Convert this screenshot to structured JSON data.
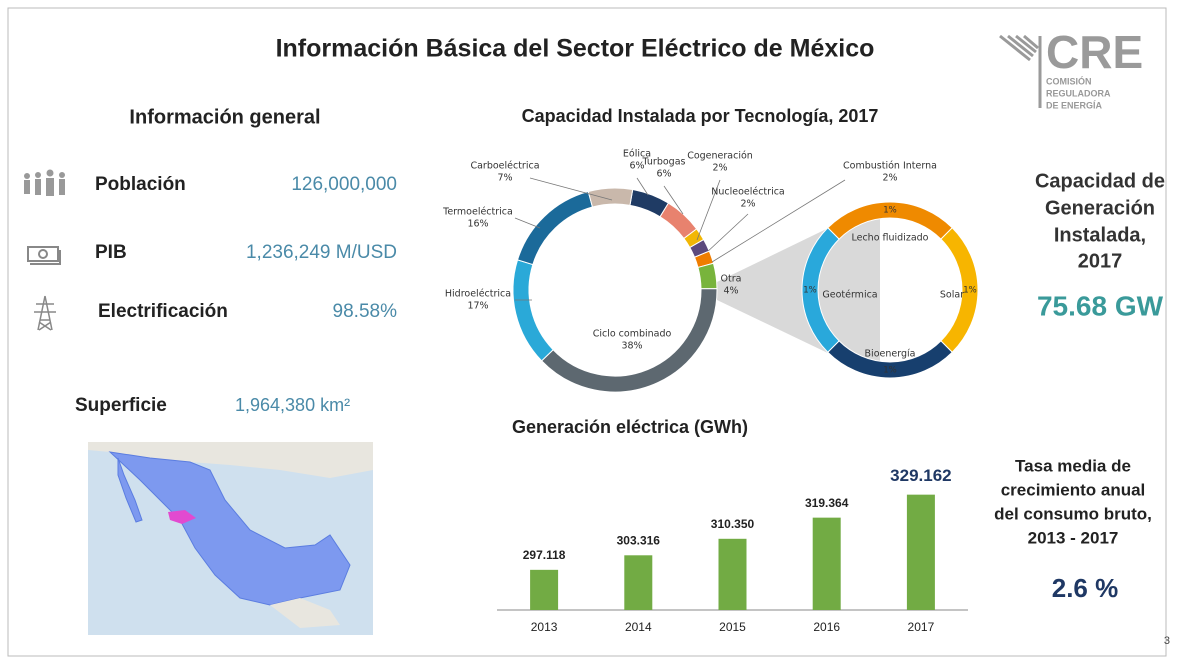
{
  "title": "Información Básica del Sector Eléctrico de México",
  "logo": {
    "name": "CRE",
    "subtitle": [
      "COMISIÓN",
      "REGULADORA",
      "DE ENERGÍA"
    ]
  },
  "general": {
    "heading": "Información general",
    "items": [
      {
        "label": "Población",
        "value": "126,000,000"
      },
      {
        "label": "PIB",
        "value": "1,236,249 M/USD"
      },
      {
        "label": "Electrificación",
        "value": "98.58%"
      }
    ],
    "surface_label": "Superficie",
    "surface_value": "1,964,380 km²"
  },
  "capacity": {
    "heading": [
      "Capacidad de",
      "Generación",
      "Instalada,",
      "2017"
    ],
    "value": "75.68 GW"
  },
  "growth": {
    "heading": [
      "Tasa media de",
      "crecimiento anual",
      "del consumo bruto,",
      "2013 - 2017"
    ],
    "value": "2.6 %"
  },
  "page_number": "3",
  "chart_data": [
    {
      "type": "donut",
      "title": "Capacidad Instalada por Tecnología, 2017",
      "categories": [
        "Eólica",
        "Turbogas",
        "Cogeneración",
        "Nucleoeléctrica",
        "Combustión Interna",
        "Otra",
        "Ciclo combinado",
        "Hidroeléctrica",
        "Termoeléctrica",
        "Carboeléctrica"
      ],
      "values": [
        6,
        6,
        2,
        2,
        2,
        4,
        38,
        17,
        16,
        7
      ],
      "value_labels": [
        "6%",
        "6%",
        "2%",
        "2%",
        "2%",
        "4%",
        "38%",
        "17%",
        "16%",
        "7%"
      ],
      "colors": [
        "#1f3b64",
        "#e8826e",
        "#f2b705",
        "#5c4a7d",
        "#ef7d00",
        "#78b43c",
        "#5d6870",
        "#2aa9d8",
        "#1b6a9a",
        "#c9b8ab"
      ]
    },
    {
      "type": "donut",
      "categories": [
        "Lecho fluidizado",
        "Solar",
        "Bioenergía",
        "Geotérmica"
      ],
      "values": [
        1,
        1,
        1,
        1
      ],
      "value_labels": [
        "1%",
        "1%",
        "1%",
        "1%"
      ],
      "colors": [
        "#ef8a00",
        "#f7b500",
        "#173f6e",
        "#29a8db"
      ]
    },
    {
      "type": "bar",
      "title": "Generación eléctrica (GWh)",
      "categories": [
        "2013",
        "2014",
        "2015",
        "2016",
        "2017"
      ],
      "values": [
        297.118,
        303.316,
        310.35,
        319.364,
        329.162
      ],
      "value_labels": [
        "297.118",
        "303.316",
        "310.350",
        "319.364",
        "329.162"
      ],
      "ylim": [
        280,
        332
      ],
      "color": "#72ab44"
    }
  ]
}
